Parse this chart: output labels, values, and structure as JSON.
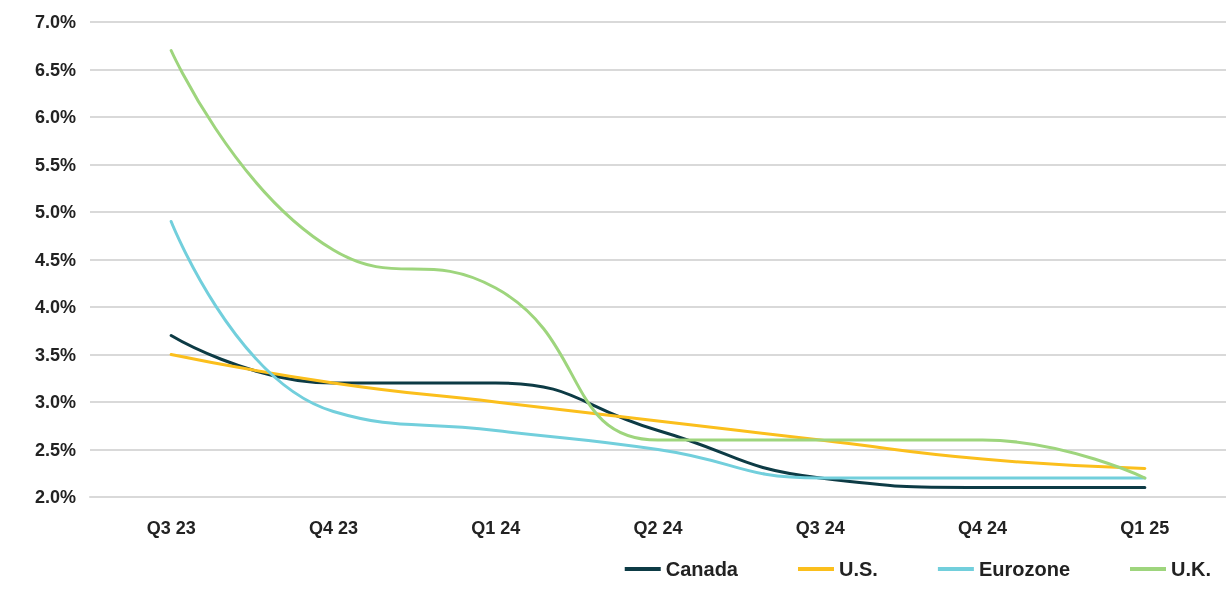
{
  "chart_data": {
    "type": "line",
    "categories": [
      "Q3 23",
      "Q4 23",
      "Q1 24",
      "Q2 24",
      "Q3 24",
      "Q4 24",
      "Q1 25"
    ],
    "series": [
      {
        "name": "Canada",
        "color": "#0d3b45",
        "values": [
          3.7,
          3.2,
          3.2,
          2.7,
          2.2,
          2.1,
          2.1
        ]
      },
      {
        "name": "U.S.",
        "color": "#fbbf1c",
        "values": [
          3.5,
          3.2,
          3.0,
          2.8,
          2.6,
          2.4,
          2.3
        ]
      },
      {
        "name": "Eurozone",
        "color": "#72cfdc",
        "values": [
          4.9,
          2.9,
          2.7,
          2.5,
          2.2,
          2.2,
          2.2
        ]
      },
      {
        "name": "U.K.",
        "color": "#9ed57d",
        "values": [
          6.7,
          4.6,
          4.2,
          2.6,
          2.6,
          2.6,
          2.2
        ]
      }
    ],
    "ylim": [
      2.0,
      7.0
    ],
    "yticks": [
      {
        "value": 2.0,
        "label": "2.0%"
      },
      {
        "value": 2.5,
        "label": "2.5%"
      },
      {
        "value": 3.0,
        "label": "3.0%"
      },
      {
        "value": 3.5,
        "label": "3.5%"
      },
      {
        "value": 4.0,
        "label": "4.0%"
      },
      {
        "value": 4.5,
        "label": "4.5%"
      },
      {
        "value": 5.0,
        "label": "5.0%"
      },
      {
        "value": 5.5,
        "label": "5.5%"
      },
      {
        "value": 6.0,
        "label": "6.0%"
      },
      {
        "value": 6.5,
        "label": "6.5%"
      },
      {
        "value": 7.0,
        "label": "7.0%"
      }
    ],
    "grid": "y",
    "legend": "bottom right",
    "marker": "none",
    "line_style": "solid"
  }
}
